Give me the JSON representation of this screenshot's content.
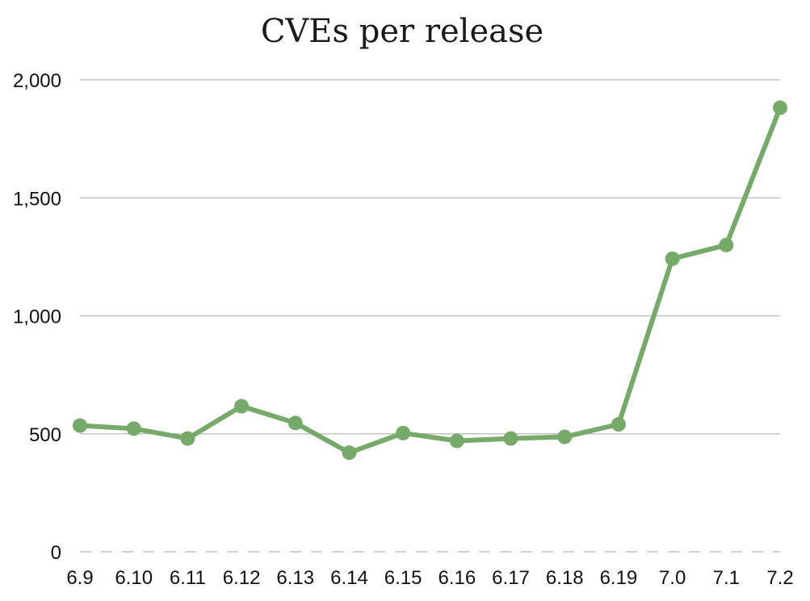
{
  "chart_data": {
    "type": "line",
    "title": "CVEs per release",
    "xlabel": "",
    "ylabel": "",
    "categories": [
      "6.9",
      "6.10",
      "6.11",
      "6.12",
      "6.13",
      "6.14",
      "6.15",
      "6.16",
      "6.17",
      "6.18",
      "6.19",
      "7.0",
      "7.1",
      "7.2"
    ],
    "series": [
      {
        "values": [
          535,
          522,
          480,
          617,
          546,
          420,
          503,
          470,
          480,
          487,
          540,
          1242,
          1300,
          1882
        ],
        "color": "#75aa69"
      }
    ],
    "ylim": [
      0,
      2000
    ],
    "yticks": [
      0,
      500,
      1000,
      1500,
      2000
    ],
    "ytick_labels": [
      "0",
      "500",
      "1,000",
      "1,500",
      "2,000"
    ],
    "grid": true,
    "legend": "none",
    "gridline_color": "#b8b8b8"
  }
}
